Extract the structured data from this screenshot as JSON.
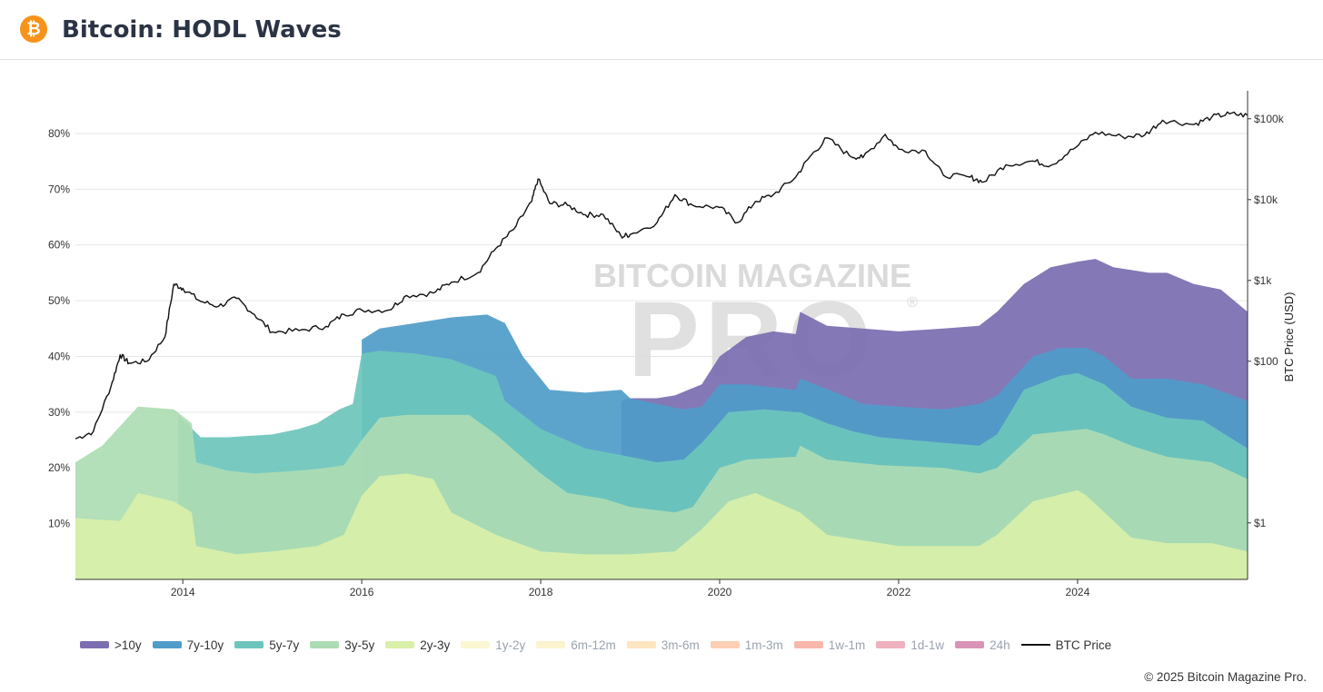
{
  "header": {
    "logo_glyph": "₿",
    "title": "Bitcoin: HODL Waves"
  },
  "watermark": {
    "line1": "BITCOIN MAGAZINE",
    "line2": "PRO",
    "mark": "®"
  },
  "footer": {
    "copyright": "© 2025 Bitcoin Magazine Pro."
  },
  "chart_data": {
    "type": "area",
    "stacked": true,
    "title": "Bitcoin: HODL Waves",
    "x_range": [
      2012.8,
      2025.9
    ],
    "y_range": [
      0,
      87
    ],
    "y_ticks": [
      {
        "value": 10,
        "label": "10%"
      },
      {
        "value": 20,
        "label": "20%"
      },
      {
        "value": 30,
        "label": "30%"
      },
      {
        "value": 40,
        "label": "40%"
      },
      {
        "value": 50,
        "label": "50%"
      },
      {
        "value": 60,
        "label": "60%"
      },
      {
        "value": 70,
        "label": "70%"
      },
      {
        "value": 80,
        "label": "80%"
      }
    ],
    "x_ticks": [
      {
        "value": 2014,
        "label": "2014"
      },
      {
        "value": 2016,
        "label": "2016"
      },
      {
        "value": 2018,
        "label": "2018"
      },
      {
        "value": 2020,
        "label": "2020"
      },
      {
        "value": 2022,
        "label": "2022"
      },
      {
        "value": 2024,
        "label": "2024"
      }
    ],
    "right_axis": {
      "label": "BTC Price (USD)",
      "scale": "log",
      "range": [
        0.2,
        200000
      ],
      "ticks": [
        {
          "value": 1,
          "label": "$1"
        },
        {
          "value": 100,
          "label": "$100"
        },
        {
          "value": 1000,
          "label": "$1k"
        },
        {
          "value": 10000,
          "label": "$10k"
        },
        {
          "value": 100000,
          "label": "$100k"
        }
      ]
    },
    "series": [
      {
        "name": "2y-3y",
        "color": "#d9f0a9",
        "stack_top": [
          [
            2012.8,
            11
          ],
          [
            2013.3,
            10.5
          ],
          [
            2013.5,
            15.5
          ],
          [
            2013.9,
            14
          ],
          [
            2014.1,
            12
          ],
          [
            2014.15,
            6
          ],
          [
            2014.6,
            4.5
          ],
          [
            2015.0,
            5
          ],
          [
            2015.5,
            6
          ],
          [
            2015.8,
            8
          ],
          [
            2016.0,
            15
          ],
          [
            2016.2,
            18.5
          ],
          [
            2016.5,
            19
          ],
          [
            2016.8,
            18
          ],
          [
            2017.0,
            12
          ],
          [
            2017.5,
            8
          ],
          [
            2018.0,
            5
          ],
          [
            2018.5,
            4.5
          ],
          [
            2019.0,
            4.5
          ],
          [
            2019.5,
            5
          ],
          [
            2019.8,
            9
          ],
          [
            2020.1,
            14
          ],
          [
            2020.4,
            15.5
          ],
          [
            2020.9,
            12
          ],
          [
            2021.2,
            8
          ],
          [
            2021.8,
            6.5
          ],
          [
            2022.0,
            6
          ],
          [
            2022.9,
            6
          ],
          [
            2023.1,
            8
          ],
          [
            2023.5,
            14
          ],
          [
            2024.0,
            16
          ],
          [
            2024.1,
            15
          ],
          [
            2024.3,
            12
          ],
          [
            2024.6,
            7.5
          ],
          [
            2025.0,
            6.5
          ],
          [
            2025.5,
            6.5
          ],
          [
            2025.9,
            5
          ]
        ]
      },
      {
        "name": "3y-5y",
        "color": "#acdcb3",
        "stack_top": [
          [
            2012.8,
            21
          ],
          [
            2013.1,
            24
          ],
          [
            2013.5,
            31
          ],
          [
            2013.9,
            30.5
          ],
          [
            2014.1,
            28
          ],
          [
            2014.15,
            21
          ],
          [
            2014.5,
            19.5
          ],
          [
            2014.8,
            19
          ],
          [
            2015.3,
            19.5
          ],
          [
            2015.6,
            20
          ],
          [
            2015.8,
            20.5
          ],
          [
            2016.0,
            25
          ],
          [
            2016.2,
            29
          ],
          [
            2016.5,
            29.5
          ],
          [
            2016.9,
            29.5
          ],
          [
            2017.2,
            29.5
          ],
          [
            2017.5,
            26
          ],
          [
            2018.0,
            19
          ],
          [
            2018.3,
            15.5
          ],
          [
            2018.7,
            14.5
          ],
          [
            2019.0,
            13
          ],
          [
            2019.5,
            12
          ],
          [
            2019.7,
            13
          ],
          [
            2020.0,
            20
          ],
          [
            2020.3,
            21.5
          ],
          [
            2020.85,
            22
          ],
          [
            2020.9,
            24
          ],
          [
            2021.2,
            21.5
          ],
          [
            2021.8,
            20.5
          ],
          [
            2022.5,
            20
          ],
          [
            2022.9,
            19
          ],
          [
            2023.1,
            20
          ],
          [
            2023.5,
            26
          ],
          [
            2023.8,
            26.5
          ],
          [
            2024.1,
            27
          ],
          [
            2024.3,
            26
          ],
          [
            2024.6,
            24
          ],
          [
            2025.0,
            22
          ],
          [
            2025.5,
            21
          ],
          [
            2025.9,
            18
          ]
        ]
      },
      {
        "name": "5y-7y",
        "color": "#6cc5bc",
        "stack_top": [
          [
            2013.95,
            29.5
          ],
          [
            2014.2,
            25.5
          ],
          [
            2014.5,
            25.5
          ],
          [
            2015.0,
            26
          ],
          [
            2015.3,
            27
          ],
          [
            2015.5,
            28
          ],
          [
            2015.75,
            30.5
          ],
          [
            2015.9,
            31.5
          ],
          [
            2016.0,
            40.5
          ],
          [
            2016.2,
            41
          ],
          [
            2016.6,
            40.5
          ],
          [
            2017.0,
            39.5
          ],
          [
            2017.5,
            36.5
          ],
          [
            2017.6,
            32
          ],
          [
            2018.0,
            27
          ],
          [
            2018.5,
            23.5
          ],
          [
            2019.0,
            22
          ],
          [
            2019.3,
            21
          ],
          [
            2019.6,
            21.5
          ],
          [
            2019.8,
            24.5
          ],
          [
            2020.1,
            30
          ],
          [
            2020.5,
            30.5
          ],
          [
            2020.85,
            30
          ],
          [
            2020.9,
            30
          ],
          [
            2021.2,
            28
          ],
          [
            2021.5,
            26.5
          ],
          [
            2021.8,
            25.5
          ],
          [
            2022.5,
            24.5
          ],
          [
            2022.9,
            24
          ],
          [
            2023.1,
            26
          ],
          [
            2023.4,
            34
          ],
          [
            2023.8,
            36.5
          ],
          [
            2024.0,
            37
          ],
          [
            2024.3,
            35
          ],
          [
            2024.6,
            31
          ],
          [
            2025.0,
            29
          ],
          [
            2025.4,
            28.5
          ],
          [
            2025.9,
            23.5
          ]
        ]
      },
      {
        "name": "7y-10y",
        "color": "#4f9cc9",
        "stack_top": [
          [
            2016.0,
            43
          ],
          [
            2016.2,
            45
          ],
          [
            2016.6,
            46
          ],
          [
            2017.0,
            47
          ],
          [
            2017.4,
            47.5
          ],
          [
            2017.6,
            46
          ],
          [
            2017.8,
            40
          ],
          [
            2018.1,
            34
          ],
          [
            2018.5,
            33.5
          ],
          [
            2018.9,
            34
          ],
          [
            2019.0,
            32.5
          ],
          [
            2019.3,
            31.5
          ],
          [
            2019.6,
            30.5
          ],
          [
            2019.8,
            31
          ],
          [
            2020.0,
            35
          ],
          [
            2020.3,
            35
          ],
          [
            2020.85,
            34
          ],
          [
            2020.9,
            36
          ],
          [
            2021.3,
            33.5
          ],
          [
            2021.6,
            31.5
          ],
          [
            2022.0,
            31
          ],
          [
            2022.5,
            30.5
          ],
          [
            2022.9,
            31.5
          ],
          [
            2023.1,
            33
          ],
          [
            2023.5,
            40
          ],
          [
            2023.8,
            41.5
          ],
          [
            2024.1,
            41.5
          ],
          [
            2024.3,
            40
          ],
          [
            2024.6,
            36
          ],
          [
            2025.0,
            36
          ],
          [
            2025.4,
            35
          ],
          [
            2025.9,
            32
          ]
        ]
      },
      {
        "name": ">10y",
        "color": "#7b6db0",
        "stack_top": [
          [
            2018.9,
            32
          ],
          [
            2019.0,
            32.5
          ],
          [
            2019.3,
            32.5
          ],
          [
            2019.5,
            33
          ],
          [
            2019.8,
            35
          ],
          [
            2020.0,
            40
          ],
          [
            2020.3,
            43.5
          ],
          [
            2020.6,
            44.5
          ],
          [
            2020.85,
            44
          ],
          [
            2020.9,
            48
          ],
          [
            2021.2,
            45.5
          ],
          [
            2021.6,
            45
          ],
          [
            2022.0,
            44.5
          ],
          [
            2022.5,
            45
          ],
          [
            2022.9,
            45.5
          ],
          [
            2023.1,
            48
          ],
          [
            2023.4,
            53
          ],
          [
            2023.7,
            56
          ],
          [
            2024.0,
            57
          ],
          [
            2024.2,
            57.5
          ],
          [
            2024.4,
            56
          ],
          [
            2024.8,
            55
          ],
          [
            2025.0,
            55
          ],
          [
            2025.3,
            53
          ],
          [
            2025.6,
            52
          ],
          [
            2025.9,
            48
          ]
        ]
      }
    ],
    "btc_price": {
      "name": "BTC Price",
      "color": "#111111",
      "points": [
        [
          2012.8,
          11
        ],
        [
          2013.0,
          13.5
        ],
        [
          2013.2,
          50
        ],
        [
          2013.3,
          120
        ],
        [
          2013.4,
          95
        ],
        [
          2013.6,
          100
        ],
        [
          2013.8,
          200
        ],
        [
          2013.9,
          900
        ],
        [
          2014.0,
          800
        ],
        [
          2014.2,
          550
        ],
        [
          2014.4,
          480
        ],
        [
          2014.6,
          600
        ],
        [
          2014.8,
          380
        ],
        [
          2015.0,
          230
        ],
        [
          2015.3,
          240
        ],
        [
          2015.6,
          270
        ],
        [
          2015.8,
          380
        ],
        [
          2016.0,
          430
        ],
        [
          2016.3,
          430
        ],
        [
          2016.5,
          650
        ],
        [
          2016.8,
          700
        ],
        [
          2017.0,
          950
        ],
        [
          2017.3,
          1250
        ],
        [
          2017.5,
          2500
        ],
        [
          2017.7,
          4300
        ],
        [
          2017.9,
          9500
        ],
        [
          2017.97,
          18000
        ],
        [
          2018.1,
          9000
        ],
        [
          2018.3,
          8500
        ],
        [
          2018.5,
          6500
        ],
        [
          2018.7,
          6500
        ],
        [
          2018.9,
          3500
        ],
        [
          2019.0,
          3700
        ],
        [
          2019.3,
          5200
        ],
        [
          2019.5,
          11500
        ],
        [
          2019.7,
          8500
        ],
        [
          2020.0,
          8000
        ],
        [
          2020.2,
          5200
        ],
        [
          2020.4,
          9500
        ],
        [
          2020.6,
          11500
        ],
        [
          2020.85,
          19000
        ],
        [
          2021.0,
          33000
        ],
        [
          2021.2,
          58000
        ],
        [
          2021.45,
          35000
        ],
        [
          2021.6,
          33000
        ],
        [
          2021.85,
          64000
        ],
        [
          2022.0,
          42000
        ],
        [
          2022.3,
          40000
        ],
        [
          2022.5,
          20000
        ],
        [
          2022.8,
          19000
        ],
        [
          2022.95,
          16500
        ],
        [
          2023.2,
          27000
        ],
        [
          2023.5,
          30000
        ],
        [
          2023.7,
          26500
        ],
        [
          2023.95,
          42000
        ],
        [
          2024.2,
          68000
        ],
        [
          2024.5,
          60000
        ],
        [
          2024.75,
          63000
        ],
        [
          2024.95,
          96000
        ],
        [
          2025.3,
          85000
        ],
        [
          2025.5,
          105000
        ],
        [
          2025.7,
          115000
        ],
        [
          2025.9,
          110000
        ]
      ]
    },
    "legend": [
      {
        "label": ">10y",
        "color": "#7b6db0",
        "active": true
      },
      {
        "label": "7y-10y",
        "color": "#4f9cc9",
        "active": true
      },
      {
        "label": "5y-7y",
        "color": "#6cc5bc",
        "active": true
      },
      {
        "label": "3y-5y",
        "color": "#acdcb3",
        "active": true
      },
      {
        "label": "2y-3y",
        "color": "#d9f0a9",
        "active": true
      },
      {
        "label": "1y-2y",
        "color": "#fbf7d2",
        "active": false
      },
      {
        "label": "6m-12m",
        "color": "#fcf3cf",
        "active": false
      },
      {
        "label": "3m-6m",
        "color": "#fde5c0",
        "active": false
      },
      {
        "label": "1m-3m",
        "color": "#fdcfb4",
        "active": false
      },
      {
        "label": "1w-1m",
        "color": "#f8b7ab",
        "active": false
      },
      {
        "label": "1d-1w",
        "color": "#eeb1bd",
        "active": false
      },
      {
        "label": "24h",
        "color": "#d993b6",
        "active": false
      },
      {
        "label": "BTC Price",
        "color": "#111111",
        "active": true,
        "line": true
      }
    ]
  }
}
